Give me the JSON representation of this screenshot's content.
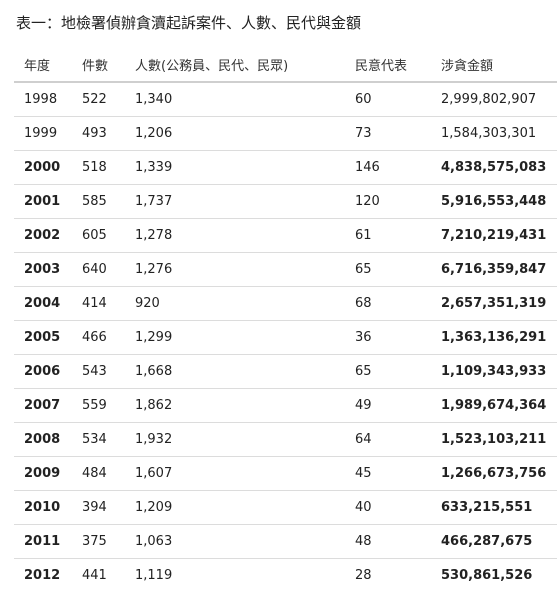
{
  "caption": "表一：地檢署偵辦貪瀆起訴案件、人數、民代與金額",
  "table": {
    "headers": {
      "year": "年度",
      "cases": "件數",
      "people": "人數(公務員、民代、民眾)",
      "representatives": "民意代表",
      "amount": "涉貪金額"
    },
    "rows": [
      {
        "year": "1998",
        "cases": "522",
        "people": "1,340",
        "representatives": "60",
        "amount": "2,999,802,907"
      },
      {
        "year": "1999",
        "cases": "493",
        "people": "1,206",
        "representatives": "73",
        "amount": "1,584,303,301"
      },
      {
        "year": "2000",
        "cases": "518",
        "people": "1,339",
        "representatives": "146",
        "amount": "4,838,575,083"
      },
      {
        "year": "2001",
        "cases": "585",
        "people": "1,737",
        "representatives": "120",
        "amount": "5,916,553,448"
      },
      {
        "year": "2002",
        "cases": "605",
        "people": "1,278",
        "representatives": "61",
        "amount": "7,210,219,431"
      },
      {
        "year": "2003",
        "cases": "640",
        "people": "1,276",
        "representatives": "65",
        "amount": "6,716,359,847"
      },
      {
        "year": "2004",
        "cases": "414",
        "people": "920",
        "representatives": "68",
        "amount": "2,657,351,319"
      },
      {
        "year": "2005",
        "cases": "466",
        "people": "1,299",
        "representatives": "36",
        "amount": "1,363,136,291"
      },
      {
        "year": "2006",
        "cases": "543",
        "people": "1,668",
        "representatives": "65",
        "amount": "1,109,343,933"
      },
      {
        "year": "2007",
        "cases": "559",
        "people": "1,862",
        "representatives": "49",
        "amount": "1,989,674,364"
      },
      {
        "year": "2008",
        "cases": "534",
        "people": "1,932",
        "representatives": "64",
        "amount": "1,523,103,211"
      },
      {
        "year": "2009",
        "cases": "484",
        "people": "1,607",
        "representatives": "45",
        "amount": "1,266,673,756"
      },
      {
        "year": "2010",
        "cases": "394",
        "people": "1,209",
        "representatives": "40",
        "amount": "633,215,551"
      },
      {
        "year": "2011",
        "cases": "375",
        "people": "1,063",
        "representatives": "48",
        "amount": "466,287,675"
      },
      {
        "year": "2012",
        "cases": "441",
        "people": "1,119",
        "representatives": "28",
        "amount": "530,861,526"
      }
    ]
  }
}
